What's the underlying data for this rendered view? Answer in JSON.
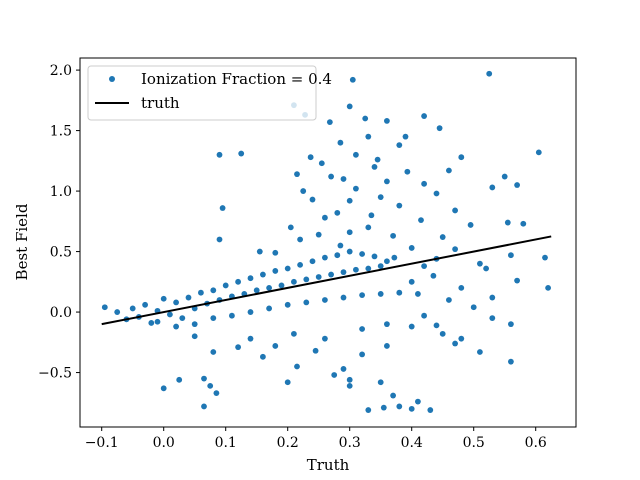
{
  "chart_data": {
    "type": "scatter",
    "xlabel": "Truth",
    "ylabel": "Best Field",
    "xlim": [
      -0.135,
      0.665
    ],
    "ylim": [
      -0.95,
      2.1
    ],
    "x_ticks": [
      -0.1,
      0.0,
      0.1,
      0.2,
      0.3,
      0.4,
      0.5,
      0.6
    ],
    "x_tick_labels": [
      "−0.1",
      "0.0",
      "0.1",
      "0.2",
      "0.3",
      "0.4",
      "0.5",
      "0.6"
    ],
    "y_ticks": [
      -0.5,
      0.0,
      0.5,
      1.0,
      1.5,
      2.0
    ],
    "y_tick_labels": [
      "−0.5",
      "0.0",
      "0.5",
      "1.0",
      "1.5",
      "2.0"
    ],
    "grid": false,
    "legend_position": "top-left",
    "series": [
      {
        "name": "Ionization Fraction = 0.4",
        "kind": "scatter",
        "color": "#1f77b4",
        "marker": "circle",
        "points": [
          [
            0.525,
            1.97
          ],
          [
            0.305,
            1.92
          ],
          [
            0.21,
            1.71
          ],
          [
            0.228,
            1.63
          ],
          [
            0.42,
            1.62
          ],
          [
            0.36,
            1.58
          ],
          [
            0.268,
            1.57
          ],
          [
            0.445,
            1.52
          ],
          [
            0.33,
            1.45
          ],
          [
            0.285,
            1.4
          ],
          [
            0.38,
            1.38
          ],
          [
            0.31,
            1.3
          ],
          [
            0.605,
            1.32
          ],
          [
            0.237,
            1.28
          ],
          [
            0.48,
            1.28
          ],
          [
            0.09,
            1.3
          ],
          [
            0.125,
            1.31
          ],
          [
            0.255,
            1.23
          ],
          [
            0.34,
            1.2
          ],
          [
            0.46,
            1.17
          ],
          [
            0.393,
            1.16
          ],
          [
            0.55,
            1.12
          ],
          [
            0.215,
            1.14
          ],
          [
            0.29,
            1.1
          ],
          [
            0.36,
            1.08
          ],
          [
            0.42,
            1.06
          ],
          [
            0.53,
            1.03
          ],
          [
            0.57,
            1.05
          ],
          [
            0.44,
            0.98
          ],
          [
            0.225,
            1.0
          ],
          [
            0.3,
            0.92
          ],
          [
            0.38,
            0.88
          ],
          [
            0.47,
            0.84
          ],
          [
            0.335,
            0.8
          ],
          [
            0.26,
            0.78
          ],
          [
            0.095,
            0.86
          ],
          [
            0.415,
            0.76
          ],
          [
            0.495,
            0.72
          ],
          [
            0.58,
            0.73
          ],
          [
            0.205,
            0.7
          ],
          [
            0.3,
            0.66
          ],
          [
            0.37,
            0.63
          ],
          [
            0.45,
            0.62
          ],
          [
            0.09,
            0.6
          ],
          [
            0.555,
            0.74
          ],
          [
            0.285,
            0.55
          ],
          [
            0.4,
            0.53
          ],
          [
            0.47,
            0.52
          ],
          [
            0.155,
            0.5
          ],
          [
            0.615,
            0.45
          ],
          [
            0.44,
            0.44
          ],
          [
            0.56,
            0.47
          ],
          [
            0.51,
            0.4
          ],
          [
            0.372,
            0.45
          ],
          [
            0.42,
            0.38
          ],
          [
            0.52,
            0.36
          ],
          [
            0.62,
            0.2
          ],
          [
            0.48,
            0.2
          ],
          [
            0.46,
            0.1
          ],
          [
            0.4,
            0.25
          ],
          [
            0.435,
            0.3
          ],
          [
            0.53,
            0.12
          ],
          [
            0.5,
            0.04
          ],
          [
            0.57,
            0.26
          ],
          [
            0.42,
            -0.03
          ],
          [
            0.44,
            -0.11
          ],
          [
            0.45,
            -0.18
          ],
          [
            0.53,
            -0.05
          ],
          [
            0.48,
            -0.22
          ],
          [
            0.56,
            -0.1
          ],
          [
            0.4,
            -0.12
          ],
          [
            0.36,
            -0.28
          ],
          [
            0.32,
            -0.35
          ],
          [
            0.29,
            -0.47
          ],
          [
            0.3,
            -0.56
          ],
          [
            0.275,
            -0.52
          ],
          [
            0.35,
            -0.58
          ],
          [
            0.37,
            -0.69
          ],
          [
            0.41,
            -0.74
          ],
          [
            0.33,
            -0.81
          ],
          [
            0.355,
            -0.79
          ],
          [
            0.4,
            -0.8
          ],
          [
            0.43,
            -0.81
          ],
          [
            0.38,
            -0.78
          ],
          [
            0.215,
            -0.45
          ],
          [
            0.2,
            -0.58
          ],
          [
            0.3,
            -0.61
          ],
          [
            0.56,
            -0.41
          ],
          [
            0.51,
            -0.33
          ],
          [
            0.47,
            -0.26
          ],
          [
            0.065,
            -0.78
          ],
          [
            0.075,
            -0.61
          ],
          [
            0.085,
            -0.67
          ],
          [
            0.065,
            -0.55
          ],
          [
            0.025,
            -0.56
          ],
          [
            0.0,
            -0.63
          ],
          [
            0.05,
            -0.2
          ],
          [
            0.08,
            -0.33
          ],
          [
            0.12,
            -0.29
          ],
          [
            0.16,
            -0.37
          ],
          [
            0.18,
            -0.28
          ],
          [
            0.245,
            -0.32
          ],
          [
            0.14,
            -0.22
          ],
          [
            0.21,
            -0.18
          ],
          [
            0.26,
            -0.22
          ],
          [
            0.32,
            -0.14
          ],
          [
            0.36,
            -0.1
          ],
          [
            0.25,
            0.64
          ],
          [
            0.22,
            0.6
          ],
          [
            0.33,
            0.7
          ],
          [
            0.18,
            0.49
          ],
          [
            0.28,
            0.82
          ],
          [
            0.24,
            0.93
          ],
          [
            0.35,
            0.95
          ],
          [
            0.31,
            1.02
          ],
          [
            0.27,
            1.12
          ],
          [
            0.345,
            1.26
          ],
          [
            0.39,
            1.45
          ],
          [
            0.325,
            1.6
          ],
          [
            0.3,
            1.7
          ],
          [
            -0.095,
            0.04
          ],
          [
            -0.075,
            0.0
          ],
          [
            -0.06,
            -0.06
          ],
          [
            -0.05,
            0.03
          ],
          [
            -0.04,
            -0.04
          ],
          [
            -0.03,
            0.06
          ],
          [
            -0.02,
            -0.09
          ],
          [
            -0.01,
            0.01
          ],
          [
            0.0,
            0.11
          ],
          [
            0.01,
            -0.02
          ],
          [
            0.02,
            0.08
          ],
          [
            0.03,
            -0.05
          ],
          [
            0.04,
            0.12
          ],
          [
            0.05,
            0.03
          ],
          [
            0.06,
            0.16
          ],
          [
            0.07,
            0.07
          ],
          [
            0.08,
            0.18
          ],
          [
            0.09,
            0.1
          ],
          [
            0.1,
            0.22
          ],
          [
            0.11,
            0.13
          ],
          [
            0.12,
            0.25
          ],
          [
            0.13,
            0.15
          ],
          [
            0.14,
            0.28
          ],
          [
            0.15,
            0.18
          ],
          [
            0.16,
            0.31
          ],
          [
            0.17,
            0.2
          ],
          [
            0.18,
            0.34
          ],
          [
            0.19,
            0.22
          ],
          [
            0.2,
            0.36
          ],
          [
            0.21,
            0.25
          ],
          [
            0.22,
            0.39
          ],
          [
            0.23,
            0.27
          ],
          [
            0.24,
            0.42
          ],
          [
            0.25,
            0.29
          ],
          [
            0.26,
            0.45
          ],
          [
            0.27,
            0.31
          ],
          [
            0.28,
            0.47
          ],
          [
            0.29,
            0.33
          ],
          [
            0.3,
            0.5
          ],
          [
            0.31,
            0.35
          ],
          [
            0.32,
            0.48
          ],
          [
            0.33,
            0.36
          ],
          [
            0.34,
            0.46
          ],
          [
            0.35,
            0.38
          ],
          [
            0.36,
            0.42
          ],
          [
            -0.01,
            -0.08
          ],
          [
            0.02,
            -0.12
          ],
          [
            0.05,
            -0.1
          ],
          [
            0.08,
            -0.05
          ],
          [
            0.11,
            -0.03
          ],
          [
            0.14,
            0.0
          ],
          [
            0.17,
            0.03
          ],
          [
            0.2,
            0.06
          ],
          [
            0.23,
            0.08
          ],
          [
            0.26,
            0.1
          ],
          [
            0.29,
            0.12
          ],
          [
            0.32,
            0.14
          ],
          [
            0.35,
            0.15
          ],
          [
            0.38,
            0.16
          ],
          [
            0.41,
            0.15
          ]
        ]
      },
      {
        "name": "truth",
        "kind": "line",
        "color": "#000000",
        "x": [
          -0.1,
          0.625
        ],
        "y": [
          -0.1,
          0.625
        ]
      }
    ]
  }
}
